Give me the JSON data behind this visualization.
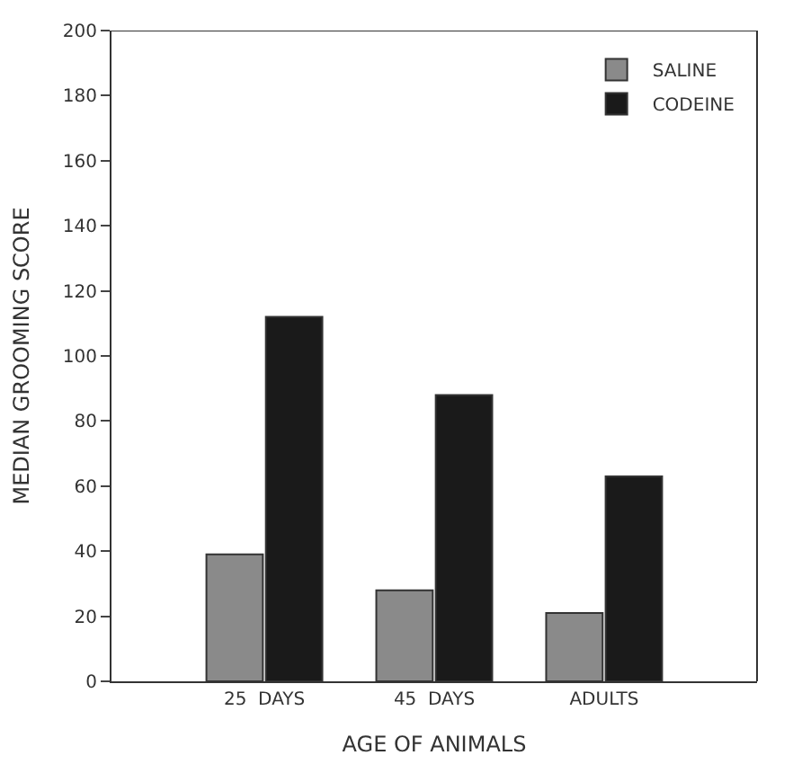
{
  "chart_data": {
    "type": "bar",
    "xlabel": "AGE OF ANIMALS",
    "ylabel": "MEDIAN GROOMING SCORE",
    "categories": [
      "25  DAYS",
      "45  DAYS",
      "ADULTS"
    ],
    "series": [
      {
        "name": "SALINE",
        "color": "#8a8a8a",
        "values": [
          39,
          28,
          21
        ]
      },
      {
        "name": "CODEINE",
        "color": "#1a1a1a",
        "values": [
          112,
          88,
          63
        ]
      }
    ],
    "ylim": [
      0,
      200
    ],
    "yticks": [
      0,
      20,
      40,
      60,
      80,
      100,
      120,
      140,
      160,
      180,
      200
    ],
    "legend": "top right"
  }
}
